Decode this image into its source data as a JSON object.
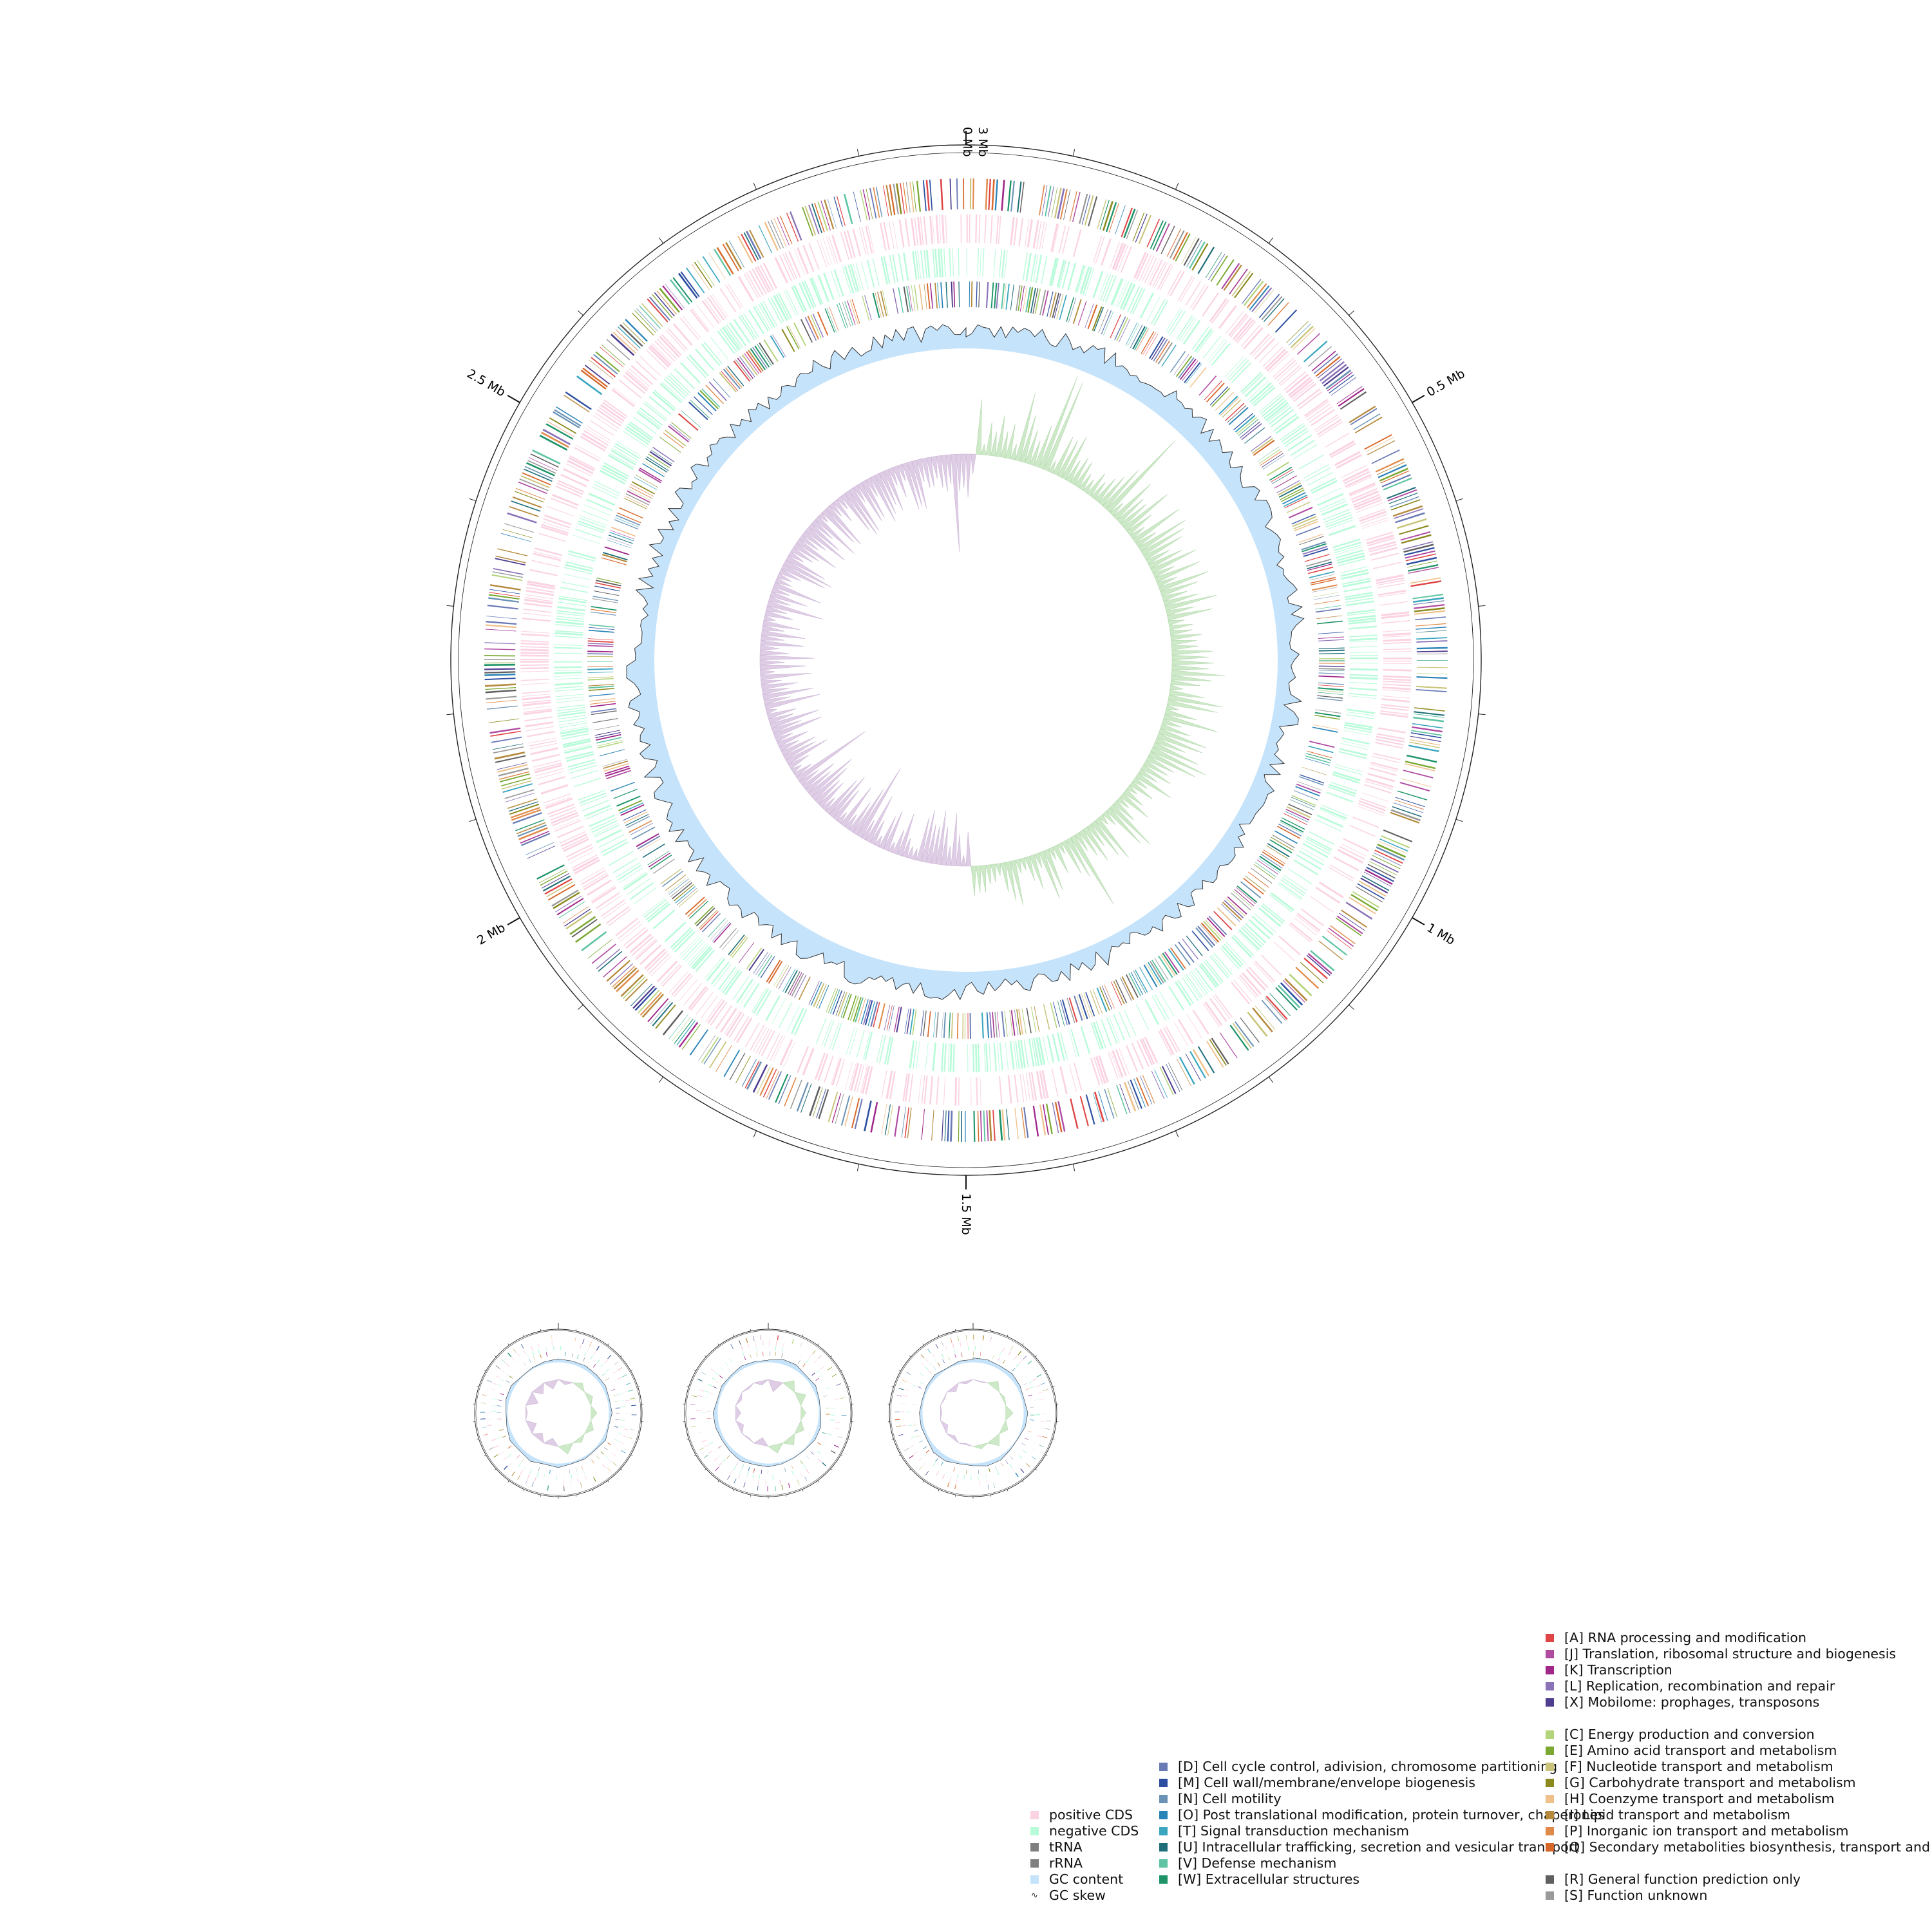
{
  "genome_map": {
    "ticks": [
      {
        "label": "0 Mb",
        "angle": 0
      },
      {
        "label": "3 Mb",
        "angle": 0
      },
      {
        "label": "0.5 Mb",
        "angle": 60
      },
      {
        "label": "1 Mb",
        "angle": 120
      },
      {
        "label": "1.5 Mb",
        "angle": 180
      },
      {
        "label": "2 Mb",
        "angle": 240
      },
      {
        "label": "2.5 Mb",
        "angle": 300
      }
    ],
    "colors": {
      "positive_cds": "#fbd3e3",
      "negative_cds": "#b8fbd9",
      "gc_content": "#c5e3fb",
      "gc_skew_pos": "#cde9c8",
      "gc_skew_neg": "#dfcde6",
      "axis": "#333333"
    },
    "plasmids": [
      {
        "id": "p1"
      },
      {
        "id": "p2"
      },
      {
        "id": "p3"
      }
    ]
  },
  "legend_left": [
    {
      "label": "positive CDS",
      "color": "#fbd3e3"
    },
    {
      "label": "negative CDS",
      "color": "#b8fbd9"
    },
    {
      "label": "tRNA",
      "color": "#7f7f7f"
    },
    {
      "label": "rRNA",
      "color": "#7f7f7f"
    },
    {
      "label": "GC content",
      "color": "#c5e3fb"
    },
    {
      "label": "GC skew",
      "icon": "line-icon"
    }
  ],
  "legend_mid": [
    {
      "label": "[D] Cell cycle control, adivision, chromosome partitioning",
      "color": "#6a7ab5"
    },
    {
      "label": "[M] Cell wall/membrane/envelope biogenesis",
      "color": "#2e4fa1"
    },
    {
      "label": "[N] Cell motility",
      "color": "#6a92b5"
    },
    {
      "label": "[O] Post translational modification, protein turnover, chaperones",
      "color": "#2b84b8"
    },
    {
      "label": "[T] Signal transduction mechanism",
      "color": "#3aa6c0"
    },
    {
      "label": "[U] Intracellular trafficking, secretion and vesicular transport",
      "color": "#1f6f7a"
    },
    {
      "label": "[V] Defense mechanism",
      "color": "#5ec4a3"
    },
    {
      "label": "[W] Extracellular structures",
      "color": "#1e9468"
    }
  ],
  "legend_right_groups": [
    [
      {
        "label": "[A] RNA processing and modification",
        "color": "#e04545"
      },
      {
        "label": "[J] Translation, ribosomal structure and biogenesis",
        "color": "#b04ba2"
      },
      {
        "label": "[K] Transcription",
        "color": "#a0278a"
      },
      {
        "label": "[L] Replication, recombination and repair",
        "color": "#8a72b8"
      },
      {
        "label": "[X] Mobilome: prophages, transposons",
        "color": "#4f3d90"
      }
    ],
    [
      {
        "label": "[C] Energy production and conversion",
        "color": "#b3d47a"
      },
      {
        "label": "[E] Amino acid transport and metabolism",
        "color": "#7aa830"
      },
      {
        "label": "[F] Nucleotide transport and metabolism",
        "color": "#c9c47a"
      },
      {
        "label": "[G] Carbohydrate transport and metabolism",
        "color": "#8c8a1e"
      },
      {
        "label": "[H] Coenzyme transport and metabolism",
        "color": "#f0c08a"
      },
      {
        "label": "[I] Lipid transport and metabolism",
        "color": "#b58a3c"
      },
      {
        "label": "[P] Inorganic ion transport and metabolism",
        "color": "#e08a4a"
      },
      {
        "label": "[Q] Secondary metabolities biosynthesis, transport and catabolism",
        "color": "#d8682a"
      }
    ],
    [
      {
        "label": "[R] General function prediction only",
        "color": "#606060"
      },
      {
        "label": "[S] Function unknown",
        "color": "#9a9a9a"
      }
    ]
  ]
}
